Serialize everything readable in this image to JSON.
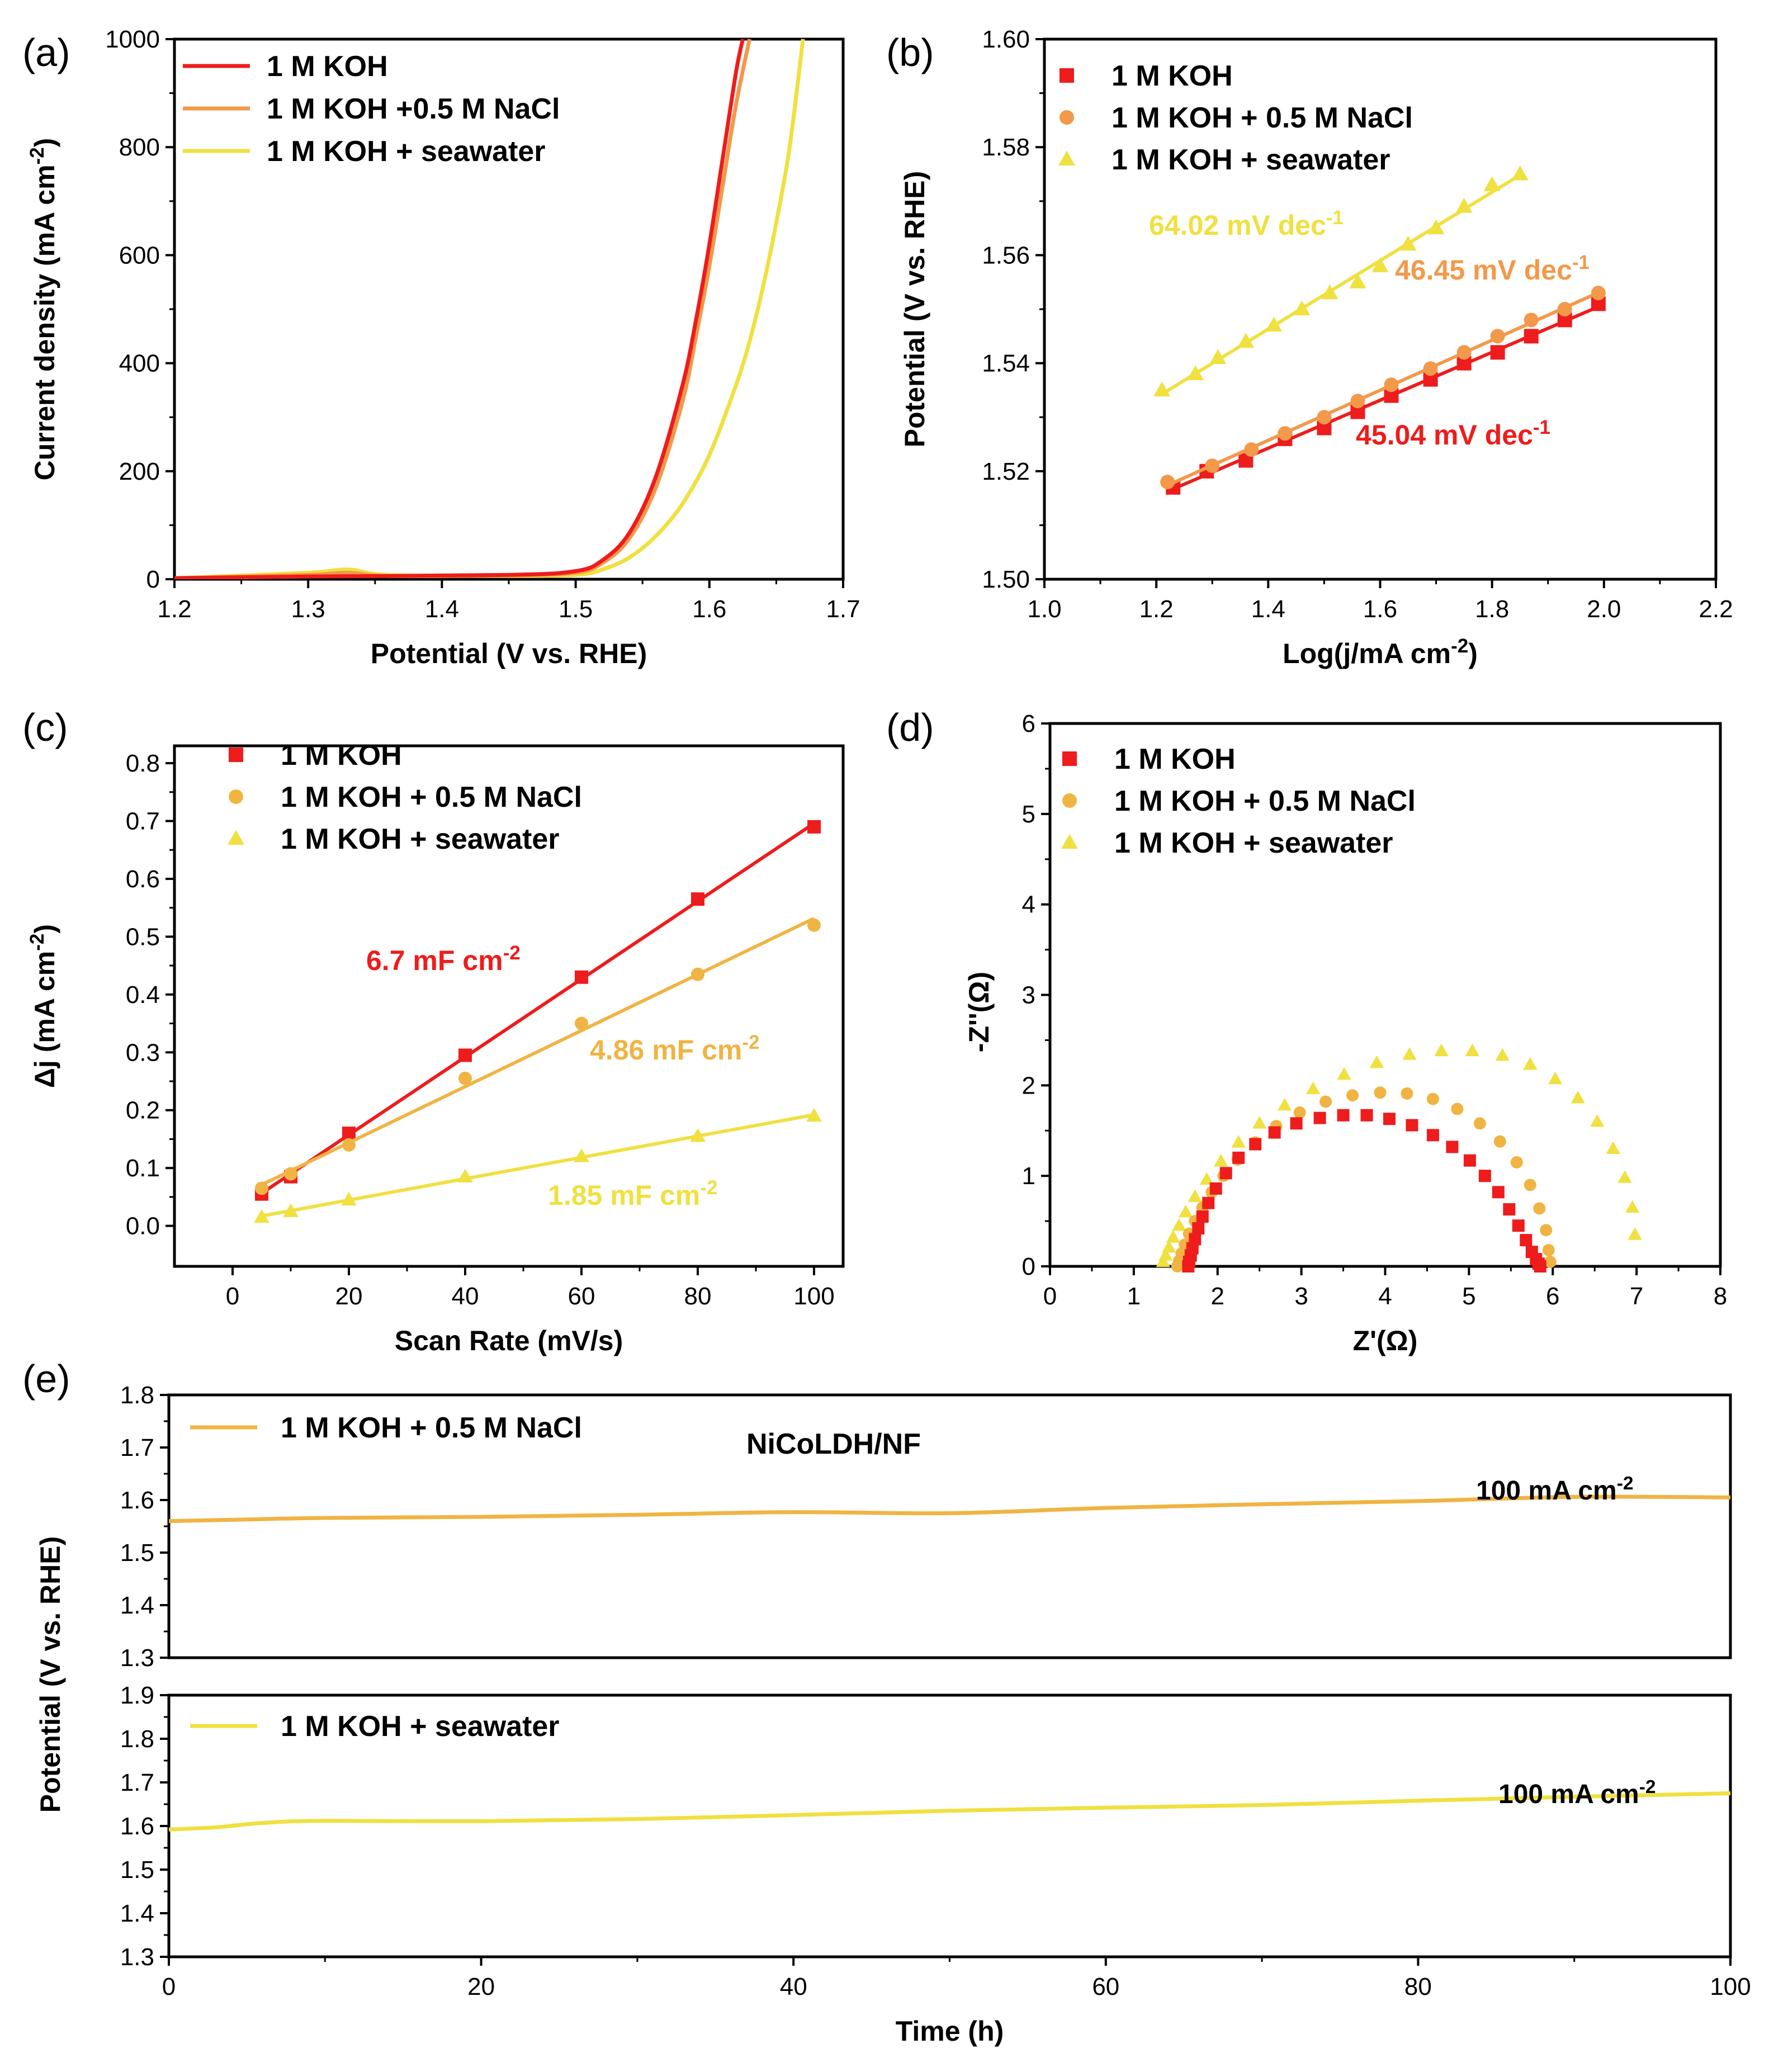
{
  "figure": {
    "colors": {
      "red": "#ee1c1c",
      "orange": "#f2994a",
      "amber": "#f0b443",
      "yellow": "#f0e040",
      "frame": "#000000"
    }
  },
  "chart_data": [
    {
      "id": "a",
      "panel_label": "(a)",
      "type": "line",
      "xlabel": "Potential (V vs. RHE)",
      "ylabel": "Current density (mA cm-2)",
      "xlim": [
        1.2,
        1.7
      ],
      "ylim": [
        0,
        1000
      ],
      "xticks": [
        1.2,
        1.3,
        1.4,
        1.5,
        1.6,
        1.7
      ],
      "xtick_labels": [
        "1.2",
        "1.3",
        "1.4",
        "1.5",
        "1.6",
        "1.7"
      ],
      "yticks": [
        0,
        200,
        400,
        600,
        800,
        1000
      ],
      "ytick_labels": [
        "0",
        "200",
        "400",
        "600",
        "800",
        "1000"
      ],
      "legend_position": "top-left",
      "series": [
        {
          "name": "1 M KOH",
          "color": "#ee1c1c",
          "x": [
            1.2,
            1.3,
            1.45,
            1.5,
            1.52,
            1.54,
            1.56,
            1.58,
            1.59,
            1.6,
            1.61,
            1.62,
            1.625
          ],
          "y": [
            2,
            5,
            8,
            15,
            35,
            85,
            190,
            360,
            480,
            620,
            780,
            940,
            1000
          ]
        },
        {
          "name": "1 M KOH +0.5 M NaCl",
          "color": "#f2994a",
          "x": [
            1.2,
            1.3,
            1.33,
            1.36,
            1.45,
            1.5,
            1.52,
            1.54,
            1.56,
            1.58,
            1.59,
            1.6,
            1.61,
            1.62,
            1.63
          ],
          "y": [
            2,
            8,
            12,
            6,
            7,
            12,
            30,
            75,
            170,
            330,
            450,
            580,
            730,
            880,
            1000
          ]
        },
        {
          "name": "1 M KOH + seawater",
          "color": "#f0e040",
          "x": [
            1.2,
            1.3,
            1.33,
            1.36,
            1.45,
            1.5,
            1.52,
            1.54,
            1.56,
            1.58,
            1.6,
            1.62,
            1.63,
            1.64,
            1.65,
            1.66,
            1.67
          ],
          "y": [
            2,
            12,
            18,
            8,
            6,
            8,
            18,
            40,
            80,
            140,
            230,
            360,
            440,
            540,
            660,
            800,
            1000
          ]
        }
      ]
    },
    {
      "id": "b",
      "panel_label": "(b)",
      "type": "scatter",
      "xlabel": "Log(j/mA cm-2)",
      "ylabel": "Potential (V vs. RHE)",
      "xlim": [
        1.0,
        2.2
      ],
      "ylim": [
        1.5,
        1.6
      ],
      "xticks": [
        1.0,
        1.2,
        1.4,
        1.6,
        1.8,
        2.0,
        2.2
      ],
      "xtick_labels": [
        "1.0",
        "1.2",
        "1.4",
        "1.6",
        "1.8",
        "2.0",
        "2.2"
      ],
      "yticks": [
        1.5,
        1.52,
        1.54,
        1.56,
        1.58,
        1.6
      ],
      "ytick_labels": [
        "1.50",
        "1.52",
        "1.54",
        "1.56",
        "1.58",
        "1.60"
      ],
      "legend_position": "top-left",
      "series": [
        {
          "name": "1 M KOH",
          "color": "#ee1c1c",
          "marker": "square",
          "x": [
            1.23,
            1.29,
            1.36,
            1.43,
            1.5,
            1.56,
            1.62,
            1.69,
            1.75,
            1.81,
            1.87,
            1.93,
            1.99
          ],
          "y": [
            1.517,
            1.52,
            1.522,
            1.526,
            1.528,
            1.531,
            1.534,
            1.537,
            1.54,
            1.542,
            1.545,
            1.548,
            1.551
          ],
          "fit_slope_label": "45.04 mV dec-1"
        },
        {
          "name": "1 M KOH + 0.5 M NaCl",
          "color": "#f2994a",
          "marker": "circle",
          "x": [
            1.22,
            1.3,
            1.37,
            1.43,
            1.5,
            1.56,
            1.62,
            1.69,
            1.75,
            1.81,
            1.87,
            1.93,
            1.99
          ],
          "y": [
            1.518,
            1.521,
            1.524,
            1.527,
            1.53,
            1.533,
            1.536,
            1.539,
            1.542,
            1.545,
            1.548,
            1.55,
            1.553
          ],
          "fit_slope_label": "46.45 mV dec-1"
        },
        {
          "name": "1 M KOH + seawater",
          "color": "#f0e040",
          "marker": "triangle",
          "x": [
            1.21,
            1.27,
            1.31,
            1.36,
            1.41,
            1.46,
            1.51,
            1.56,
            1.6,
            1.65,
            1.7,
            1.75,
            1.8,
            1.85
          ],
          "y": [
            1.535,
            1.538,
            1.541,
            1.544,
            1.547,
            1.55,
            1.553,
            1.555,
            1.558,
            1.562,
            1.565,
            1.569,
            1.573,
            1.575
          ],
          "fit_slope_label": "64.02 mV dec-1"
        }
      ]
    },
    {
      "id": "c",
      "panel_label": "(c)",
      "type": "scatter",
      "xlabel": "Scan Rate (mV/s)",
      "ylabel": "Δj (mA cm-2)",
      "xlim": [
        -10,
        105
      ],
      "ylim": [
        -0.07,
        0.83
      ],
      "xticks": [
        0,
        20,
        40,
        60,
        80,
        100
      ],
      "xtick_labels": [
        "0",
        "20",
        "40",
        "60",
        "80",
        "100"
      ],
      "yticks": [
        0.0,
        0.1,
        0.2,
        0.3,
        0.4,
        0.5,
        0.6,
        0.7,
        0.8
      ],
      "ytick_labels": [
        "0.0",
        "0.1",
        "0.2",
        "0.3",
        "0.4",
        "0.5",
        "0.6",
        "0.7",
        "0.8"
      ],
      "legend_position": "top-left",
      "series": [
        {
          "name": "1 M KOH",
          "color": "#ee1c1c",
          "marker": "square",
          "x": [
            5,
            10,
            20,
            40,
            60,
            80,
            100
          ],
          "y": [
            0.055,
            0.085,
            0.16,
            0.295,
            0.43,
            0.565,
            0.69
          ],
          "fit_label": "6.7 mF cm-2"
        },
        {
          "name": "1 M KOH + 0.5 M NaCl",
          "color": "#f0b443",
          "marker": "circle",
          "x": [
            5,
            10,
            20,
            40,
            60,
            80,
            100
          ],
          "y": [
            0.065,
            0.09,
            0.14,
            0.255,
            0.35,
            0.435,
            0.52
          ],
          "fit_label": "4.86 mF cm-2"
        },
        {
          "name": "1 M KOH + seawater",
          "color": "#f0e040",
          "marker": "triangle",
          "x": [
            5,
            10,
            20,
            40,
            60,
            80,
            100
          ],
          "y": [
            0.015,
            0.025,
            0.045,
            0.085,
            0.12,
            0.155,
            0.19
          ],
          "fit_label": "1.85 mF cm-2"
        }
      ]
    },
    {
      "id": "d",
      "panel_label": "(d)",
      "type": "scatter",
      "xlabel": "Z'(Ω)",
      "ylabel": "-Z''(Ω)",
      "xlim": [
        0,
        8
      ],
      "ylim": [
        0,
        6
      ],
      "xticks": [
        0,
        1,
        2,
        3,
        4,
        5,
        6,
        7,
        8
      ],
      "xtick_labels": [
        "0",
        "1",
        "2",
        "3",
        "4",
        "5",
        "6",
        "7",
        "8"
      ],
      "yticks": [
        0,
        1,
        2,
        3,
        4,
        5,
        6
      ],
      "ytick_labels": [
        "0",
        "1",
        "2",
        "3",
        "4",
        "5",
        "6"
      ],
      "legend_position": "top-left",
      "series": [
        {
          "name": "1 M KOH",
          "color": "#ee1c1c",
          "marker": "square",
          "x": [
            1.65,
            1.66,
            1.68,
            1.7,
            1.73,
            1.77,
            1.82,
            1.89,
            1.98,
            2.1,
            2.25,
            2.45,
            2.68,
            2.94,
            3.22,
            3.5,
            3.78,
            4.05,
            4.32,
            4.57,
            4.8,
            5.01,
            5.19,
            5.35,
            5.48,
            5.59,
            5.68,
            5.75,
            5.8,
            5.83,
            5.85
          ],
          "y": [
            0.0,
            0.05,
            0.12,
            0.2,
            0.3,
            0.42,
            0.55,
            0.7,
            0.86,
            1.03,
            1.2,
            1.35,
            1.48,
            1.58,
            1.64,
            1.67,
            1.67,
            1.63,
            1.56,
            1.45,
            1.32,
            1.17,
            1.0,
            0.82,
            0.63,
            0.45,
            0.29,
            0.16,
            0.08,
            0.03,
            0.0
          ]
        },
        {
          "name": "1 M KOH + 0.5 M NaCl",
          "color": "#f0b443",
          "marker": "circle",
          "x": [
            1.52,
            1.54,
            1.57,
            1.61,
            1.66,
            1.73,
            1.82,
            1.93,
            2.07,
            2.24,
            2.45,
            2.7,
            2.98,
            3.29,
            3.61,
            3.94,
            4.26,
            4.57,
            4.86,
            5.13,
            5.37,
            5.57,
            5.73,
            5.84,
            5.92,
            5.95,
            5.97
          ],
          "y": [
            0.0,
            0.06,
            0.14,
            0.24,
            0.36,
            0.5,
            0.65,
            0.82,
            1.0,
            1.18,
            1.37,
            1.55,
            1.7,
            1.82,
            1.89,
            1.92,
            1.91,
            1.85,
            1.74,
            1.58,
            1.38,
            1.15,
            0.9,
            0.64,
            0.4,
            0.18,
            0.05
          ]
        },
        {
          "name": "1 M KOH + seawater",
          "color": "#f0e040",
          "marker": "triangle",
          "x": [
            1.35,
            1.38,
            1.42,
            1.47,
            1.54,
            1.62,
            1.73,
            1.87,
            2.04,
            2.25,
            2.5,
            2.8,
            3.14,
            3.51,
            3.9,
            4.29,
            4.67,
            5.04,
            5.4,
            5.73,
            6.03,
            6.3,
            6.53,
            6.72,
            6.86,
            6.95,
            6.98
          ],
          "y": [
            0.05,
            0.12,
            0.21,
            0.32,
            0.45,
            0.6,
            0.77,
            0.96,
            1.16,
            1.37,
            1.58,
            1.78,
            1.96,
            2.12,
            2.25,
            2.34,
            2.38,
            2.38,
            2.33,
            2.23,
            2.07,
            1.86,
            1.6,
            1.3,
            0.98,
            0.65,
            0.35
          ]
        }
      ]
    },
    {
      "id": "e_top",
      "panel_label": "(e)",
      "type": "line",
      "title": "NiCoLDH/NF",
      "condition_label": "100 mA cm-2",
      "xlim": [
        0,
        100
      ],
      "ylim": [
        1.3,
        1.8
      ],
      "yticks": [
        1.3,
        1.4,
        1.5,
        1.6,
        1.7,
        1.8
      ],
      "ytick_labels": [
        "1.3",
        "1.4",
        "1.5",
        "1.6",
        "1.7",
        "1.8"
      ],
      "legend_position": "top-left",
      "series": [
        {
          "name": "1 M KOH + 0.5 M NaCl",
          "color": "#f0b443",
          "x": [
            0,
            5,
            10,
            20,
            30,
            40,
            50,
            60,
            70,
            80,
            90,
            100
          ],
          "y": [
            1.56,
            1.563,
            1.566,
            1.568,
            1.572,
            1.577,
            1.575,
            1.585,
            1.592,
            1.598,
            1.606,
            1.605
          ]
        }
      ]
    },
    {
      "id": "e_bottom",
      "type": "line",
      "xlabel": "Time (h)",
      "ylabel": "Potential (V vs. RHE)",
      "condition_label": "100 mA cm-2",
      "xlim": [
        0,
        100
      ],
      "ylim": [
        1.3,
        1.9
      ],
      "xticks": [
        0,
        20,
        40,
        60,
        80,
        100
      ],
      "xtick_labels": [
        "0",
        "20",
        "40",
        "60",
        "80",
        "100"
      ],
      "yticks": [
        1.3,
        1.4,
        1.5,
        1.6,
        1.7,
        1.8,
        1.9
      ],
      "ytick_labels": [
        "1.3",
        "1.4",
        "1.5",
        "1.6",
        "1.7",
        "1.8",
        "1.9"
      ],
      "legend_position": "top-left",
      "series": [
        {
          "name": "1 M KOH + seawater",
          "color": "#f0e040",
          "x": [
            0,
            3,
            6,
            10,
            20,
            30,
            40,
            50,
            60,
            70,
            80,
            90,
            100
          ],
          "y": [
            1.592,
            1.597,
            1.607,
            1.612,
            1.611,
            1.616,
            1.625,
            1.635,
            1.642,
            1.648,
            1.658,
            1.667,
            1.675
          ]
        }
      ]
    }
  ]
}
